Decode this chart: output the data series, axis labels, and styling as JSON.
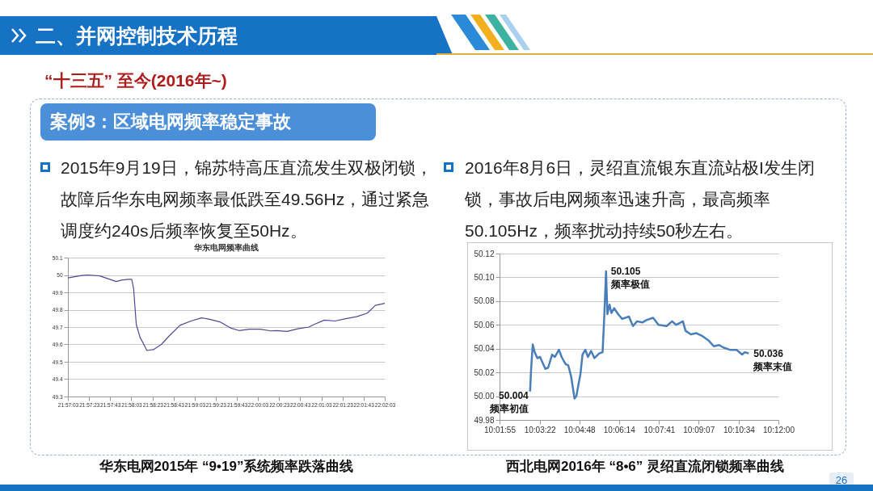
{
  "chart_data": [
    {
      "type": "line",
      "title": "华东电网频率曲线",
      "annotations": [
        "二、并网控制技术历程",
        "“十三五” 至今(2016年~)",
        "案例3：区域电网频率稳定事故",
        "2015年9月19日，锦苏特高压直流发生双极闭锁，故障后华东电网频率最低跌至49.56Hz，通过紧急调度约240s后频率恢复至50Hz。",
        "华东电网2015年 “9•19”系统频率跌落曲线"
      ],
      "x": [
        21.9508,
        21.9544,
        21.9561,
        21.9592,
        21.9635,
        21.9649,
        21.9667,
        21.9676,
        21.9681,
        21.9688,
        21.9698,
        21.9708,
        21.9716,
        21.9733,
        21.9754,
        21.9775,
        21.9803,
        21.9832,
        21.986,
        21.9881,
        21.9908,
        21.9936,
        21.9958,
        21.9986,
        22.0014,
        22.0042,
        22.0056,
        22.0085,
        22.0113,
        22.0142,
        22.0156,
        22.0183,
        22.0211,
        22.0239,
        22.0268,
        22.0296,
        22.0317,
        22.0342
      ],
      "series": [
        {
          "color": "#4b4b9a",
          "values": [
            49.983,
            49.997,
            50.0,
            49.995,
            49.962,
            49.97,
            49.975,
            49.975,
            49.92,
            49.714,
            49.64,
            49.6,
            49.565,
            49.57,
            49.6,
            49.65,
            49.71,
            49.735,
            49.753,
            49.745,
            49.73,
            49.695,
            49.68,
            49.688,
            49.688,
            49.678,
            49.68,
            49.675,
            49.69,
            49.7,
            49.715,
            49.74,
            49.735,
            49.748,
            49.76,
            49.78,
            49.825,
            49.837
          ]
        }
      ],
      "xlim": [
        21.9508,
        22.0342
      ],
      "xticks": [
        {
          "value": 21.9508,
          "label": "21:57:03"
        },
        {
          "value": 21.9564,
          "label": "21:57:23"
        },
        {
          "value": 21.9619,
          "label": "21:57:43"
        },
        {
          "value": 21.9675,
          "label": "21:58:03"
        },
        {
          "value": 21.9731,
          "label": "21:58:23"
        },
        {
          "value": 21.9786,
          "label": "21:58:43"
        },
        {
          "value": 21.9842,
          "label": "21:59:03"
        },
        {
          "value": 21.9897,
          "label": "21:59:23"
        },
        {
          "value": 21.9953,
          "label": "21:59:43"
        },
        {
          "value": 22.0008,
          "label": "22:00:03"
        },
        {
          "value": 22.0064,
          "label": "22:00:23"
        },
        {
          "value": 22.0119,
          "label": "22:00:43"
        },
        {
          "value": 22.0175,
          "label": "22:01:03"
        },
        {
          "value": 22.0231,
          "label": "22:01:23"
        },
        {
          "value": 22.0286,
          "label": "22:01:43"
        },
        {
          "value": 22.0342,
          "label": "22:02:03"
        }
      ],
      "ylim": [
        49.3,
        50.1
      ],
      "yticks": [
        49.3,
        49.4,
        49.5,
        49.6,
        49.7,
        49.8,
        49.9,
        50,
        50.1
      ],
      "grid": "y"
    },
    {
      "type": "line",
      "annotations": [
        "2016年8月6日，灵绍直流银东直流站极I发生闭锁，事故后电网频率迅速升高，最高频率50.105Hz，频率扰动持续50秒左右。",
        "西北电网2016年 “8•6” 灵绍直流闭锁频率曲线",
        "26",
        {
          "text": "50.004\n频率初值",
          "x": 10.0503,
          "y": 50.004
        },
        {
          "text": "50.105\n频率极值",
          "x": 10.0961,
          "y": 50.105
        },
        {
          "text": "50.036\n频率末值",
          "x": 10.1821,
          "y": 50.036
        }
      ],
      "x": [
        10.0503,
        10.0509,
        10.0519,
        10.0531,
        10.0547,
        10.0563,
        10.0595,
        10.0612,
        10.0636,
        10.0652,
        10.0677,
        10.0693,
        10.0717,
        10.0733,
        10.075,
        10.0771,
        10.0782,
        10.0807,
        10.0819,
        10.0836,
        10.0852,
        10.0871,
        10.0891,
        10.092,
        10.094,
        10.0949,
        10.0961,
        10.0969,
        10.0982,
        10.0993,
        10.101,
        10.1034,
        10.1058,
        10.1099,
        10.1123,
        10.1148,
        10.118,
        10.1204,
        10.1245,
        10.1277,
        10.1326,
        10.1359,
        10.1383,
        10.1424,
        10.144,
        10.1472,
        10.1505,
        10.1537,
        10.1578,
        10.161,
        10.1643,
        10.1667,
        10.1708,
        10.1748,
        10.1781,
        10.1797,
        10.1821
      ],
      "series": [
        {
          "color": "#4a7ebb",
          "values": [
            50.004,
            50.022,
            50.0435,
            50.037,
            50.032,
            50.033,
            50.023,
            50.024,
            50.035,
            50.033,
            50.039,
            50.033,
            50.027,
            50.026,
            50.017,
            49.998,
            50.0,
            50.019,
            50.035,
            50.039,
            50.033,
            50.038,
            50.032,
            50.036,
            50.037,
            50.063,
            50.105,
            50.069,
            50.077,
            50.07,
            50.074,
            50.069,
            50.065,
            50.067,
            50.059,
            50.063,
            50.062,
            50.064,
            50.066,
            50.06,
            50.059,
            50.063,
            50.06,
            50.063,
            50.055,
            50.052,
            50.053,
            50.051,
            50.047,
            50.042,
            50.043,
            50.041,
            50.039,
            50.039,
            50.035,
            50.037,
            50.036
          ]
        }
      ],
      "xlim": [
        10.0319,
        10.2
      ],
      "xticks": [
        {
          "value": 10.0319,
          "label": "10:01:55"
        },
        {
          "value": 10.0561,
          "label": "10:03:22"
        },
        {
          "value": 10.08,
          "label": "10:04:48"
        },
        {
          "value": 10.1039,
          "label": "10:06:14"
        },
        {
          "value": 10.1281,
          "label": "10:07:41"
        },
        {
          "value": 10.1519,
          "label": "10:09:07"
        },
        {
          "value": 10.1761,
          "label": "10:10:34"
        },
        {
          "value": 10.2,
          "label": "10:12:00"
        }
      ],
      "ylim": [
        49.98,
        50.12
      ],
      "yticks": [
        {
          "value": 49.98,
          "label": "49.98"
        },
        {
          "value": 50,
          "label": "50.00"
        },
        {
          "value": 50.02,
          "label": "50.02"
        },
        {
          "value": 50.04,
          "label": "50.04"
        },
        {
          "value": 50.06,
          "label": "50.06"
        },
        {
          "value": 50.08,
          "label": "50.08"
        },
        {
          "value": 50.1,
          "label": "50.10"
        },
        {
          "value": 50.12,
          "label": "50.12"
        }
      ],
      "grid": "y"
    }
  ]
}
